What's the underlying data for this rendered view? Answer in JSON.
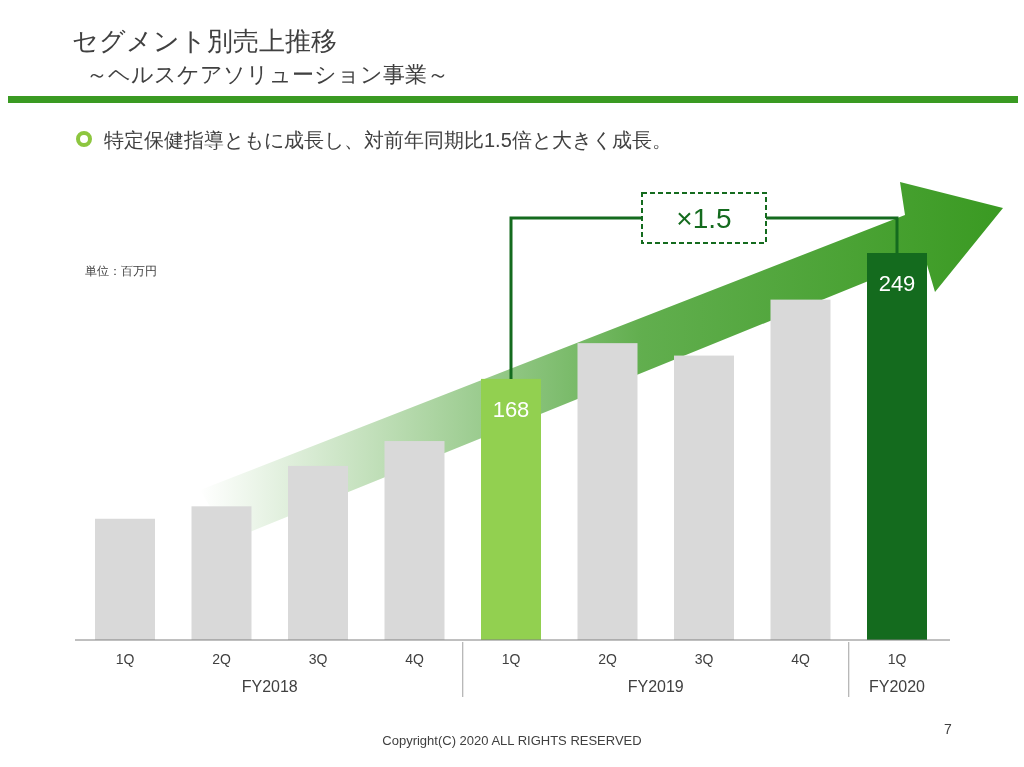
{
  "chart_data": {
    "type": "bar",
    "title": "セグメント別売上推移",
    "subtitle": "～ヘルスケアソリューション事業～",
    "ylabel": "単位：百万円",
    "categories": [
      "1Q",
      "2Q",
      "3Q",
      "4Q",
      "1Q",
      "2Q",
      "3Q",
      "4Q",
      "1Q"
    ],
    "values": [
      78,
      86,
      112,
      128,
      168,
      191,
      183,
      219,
      249
    ],
    "colors": [
      "#d9d9d9",
      "#d9d9d9",
      "#d9d9d9",
      "#d9d9d9",
      "#92d050",
      "#d9d9d9",
      "#d9d9d9",
      "#d9d9d9",
      "#146b1e"
    ],
    "value_labels": [
      null,
      null,
      null,
      null,
      "168",
      null,
      null,
      null,
      "249"
    ],
    "annotations": [
      "特定保健指導ともに成長し、対前年同期比1.5倍と大きく成長。",
      "×1.5",
      "FY2018",
      "FY2019",
      "FY2020",
      "Copyright(C) 2020 ALL RIGHTS RESERVED",
      "7"
    ],
    "tick_labels": "x"
  }
}
